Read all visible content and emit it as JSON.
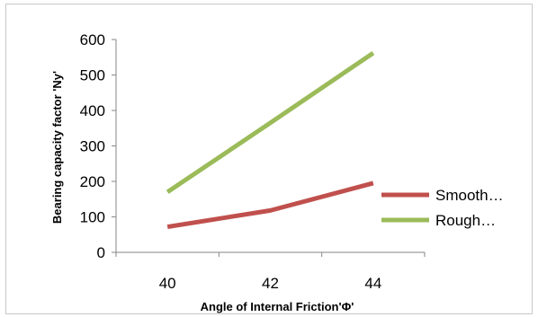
{
  "chart_data": {
    "type": "line",
    "x": [
      40,
      42,
      44
    ],
    "series": [
      {
        "name": "Smooth…",
        "values": [
          72,
          118,
          195
        ],
        "color": "#c0504d"
      },
      {
        "name": "Rough…",
        "values": [
          170,
          365,
          562
        ],
        "color": "#9bbb59"
      }
    ],
    "xlabel": "Angle of Internal Friction'Φ'",
    "ylabel": "Bearing capacity factor 'Ny'",
    "ylim": [
      0,
      600
    ],
    "yticks": [
      0,
      100,
      200,
      300,
      400,
      500,
      600
    ],
    "xticks": [
      "40",
      "42",
      "44"
    ],
    "grid": false,
    "legend": "right"
  }
}
